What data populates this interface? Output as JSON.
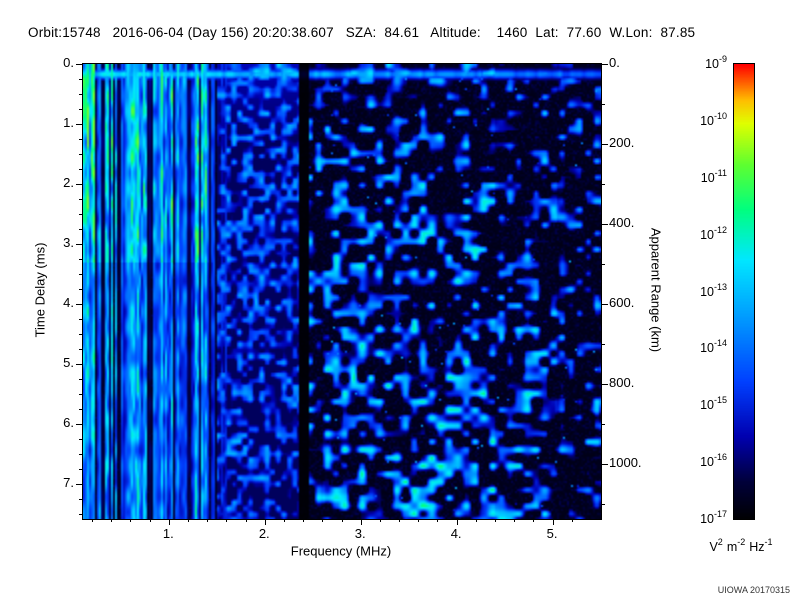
{
  "header": {
    "text": "Orbit:15748   2016-06-04 (Day 156) 20:20:38.607   SZA:  84.61   Altitude:    1460  Lat:  77.60  W.Lon:  87.85",
    "orbit": "15748",
    "date": "2016-06-04",
    "day_of_year": "156",
    "time": "20:20:38.607",
    "sza": "84.61",
    "altitude": "1460",
    "lat": "77.60",
    "w_lon": "87.85"
  },
  "watermark": "UIOWA 20170315",
  "chart_data": {
    "type": "heatmap",
    "title": "",
    "xlabel": "Frequency (MHz)",
    "ylabel_left": "Time Delay (ms)",
    "ylabel_right": "Apparent Range (km)",
    "x_range_mhz": [
      0.1,
      5.5
    ],
    "y_range_ms": [
      0.0,
      7.58
    ],
    "km_per_ms": 150,
    "x_ticks": [
      {
        "value": 1,
        "label": "1."
      },
      {
        "value": 2,
        "label": "2."
      },
      {
        "value": 3,
        "label": "3."
      },
      {
        "value": 4,
        "label": "4."
      },
      {
        "value": 5,
        "label": "5."
      }
    ],
    "y_ticks_left": [
      {
        "value": 0,
        "label": "0."
      },
      {
        "value": 1,
        "label": "1."
      },
      {
        "value": 2,
        "label": "2."
      },
      {
        "value": 3,
        "label": "3."
      },
      {
        "value": 4,
        "label": "4."
      },
      {
        "value": 5,
        "label": "5."
      },
      {
        "value": 6,
        "label": "6."
      },
      {
        "value": 7,
        "label": "7."
      }
    ],
    "y_ticks_right": [
      {
        "value": 0,
        "label": "0."
      },
      {
        "value": 200,
        "label": "200."
      },
      {
        "value": 400,
        "label": "400."
      },
      {
        "value": 600,
        "label": "600."
      },
      {
        "value": 800,
        "label": "800."
      },
      {
        "value": 1000,
        "label": "1000."
      }
    ],
    "colorbar": {
      "scale": "log",
      "max": "1e-9",
      "min": "1e-17",
      "tick_exponents": [
        -9,
        -10,
        -11,
        -12,
        -13,
        -14,
        -15,
        -16,
        -17
      ],
      "unit_parts": [
        {
          "base": "V",
          "sup": "2"
        },
        {
          "base": "m",
          "sup": "-2"
        },
        {
          "base": "Hz",
          "sup": "-1"
        }
      ]
    },
    "colormap_stops": [
      {
        "pos": 0.0,
        "color": "#000004"
      },
      {
        "pos": 0.08,
        "color": "#00003a"
      },
      {
        "pos": 0.18,
        "color": "#0000b0"
      },
      {
        "pos": 0.3,
        "color": "#0040ff"
      },
      {
        "pos": 0.45,
        "color": "#00a0ff"
      },
      {
        "pos": 0.57,
        "color": "#00e8ff"
      },
      {
        "pos": 0.68,
        "color": "#00ff80"
      },
      {
        "pos": 0.78,
        "color": "#60ff30"
      },
      {
        "pos": 0.87,
        "color": "#e0ff00"
      },
      {
        "pos": 0.92,
        "color": "#ffc000"
      },
      {
        "pos": 0.96,
        "color": "#ff6000"
      },
      {
        "pos": 1.0,
        "color": "#ff0000"
      }
    ],
    "spectrogram_features": {
      "seed": 20170315,
      "description": "Radar sounder ionogram: dense cyan-green vertical plasma-line striping below ~1.6 MHz over full delay range (brightest green top-left above ~3.3 ms), bright horizontal echo band near 0.17 ms delay across all frequencies, diffuse dark-blue speckle column between ~1.6 and 2.36 MHz, black vertical gap near 2.4 MHz, scattered faint blue echo blobs above 2.5 MHz growing denser toward longer delays, near-black noise floor elsewhere",
      "stripe_fade_end_mhz": 1.75,
      "stripe_full_until_mhz": 1.4,
      "blue_column_mhz": [
        1.5,
        2.36
      ],
      "dark_gap_mhz": [
        2.36,
        2.45
      ],
      "surface_echo_delay_ms": 0.17,
      "noise_floor": 0.05
    }
  }
}
